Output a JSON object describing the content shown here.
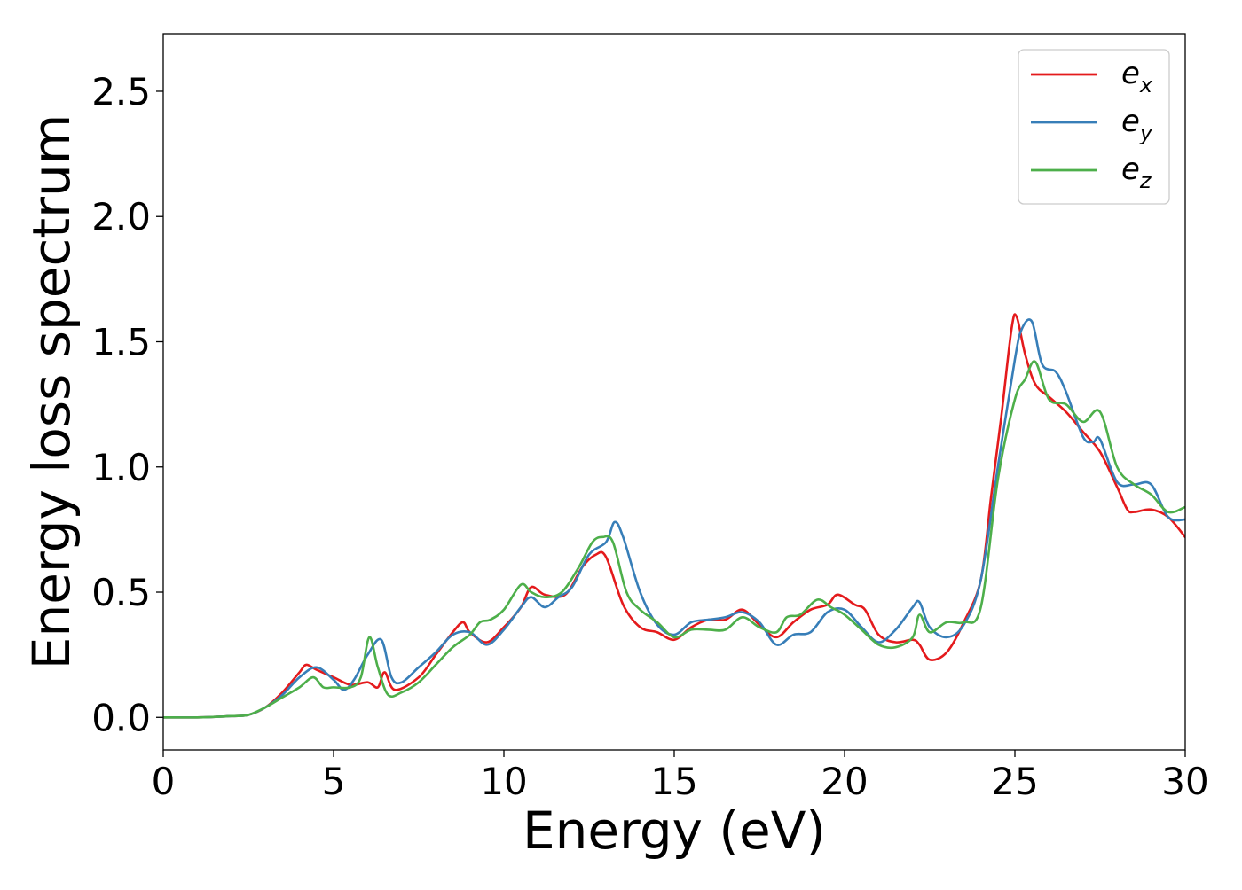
{
  "chart_data": {
    "type": "line",
    "xlabel": "Energy (eV)",
    "ylabel": "Energy loss spectrum",
    "xlim": [
      0,
      30
    ],
    "ylim": [
      -0.13,
      2.73
    ],
    "xticks": [
      0,
      5,
      10,
      15,
      20,
      25,
      30
    ],
    "xtick_labels": [
      "0",
      "5",
      "10",
      "15",
      "20",
      "25",
      "30"
    ],
    "yticks": [
      0.0,
      0.5,
      1.0,
      1.5,
      2.0,
      2.5
    ],
    "ytick_labels": [
      "0.0",
      "0.5",
      "1.0",
      "1.5",
      "2.0",
      "2.5"
    ],
    "grid": false,
    "legend_position": "top-right",
    "series": [
      {
        "name": "e",
        "subscript": "x",
        "color": "#e41a1c",
        "x": [
          0,
          1,
          2,
          2.5,
          3,
          3.5,
          4,
          4.2,
          4.5,
          5,
          5.5,
          6,
          6.3,
          6.5,
          6.8,
          7.5,
          8,
          8.5,
          8.8,
          9,
          9.5,
          10,
          10.5,
          10.8,
          11.2,
          11.8,
          12.3,
          12.7,
          13,
          13.5,
          14,
          14.5,
          15,
          15.5,
          16,
          16.5,
          17,
          17.5,
          18,
          18.5,
          19,
          19.5,
          19.8,
          20.3,
          20.6,
          21,
          21.5,
          22,
          22.2,
          22.5,
          23,
          23.5,
          24,
          24.3,
          24.6,
          24.9,
          25.05,
          25.3,
          25.6,
          26,
          26.5,
          27,
          27.5,
          28,
          28.3,
          28.5,
          29,
          29.5,
          30
        ],
        "y": [
          0,
          0,
          0.005,
          0.01,
          0.04,
          0.1,
          0.18,
          0.21,
          0.19,
          0.16,
          0.13,
          0.14,
          0.12,
          0.18,
          0.11,
          0.16,
          0.25,
          0.34,
          0.38,
          0.34,
          0.3,
          0.36,
          0.44,
          0.52,
          0.49,
          0.49,
          0.6,
          0.65,
          0.64,
          0.45,
          0.36,
          0.34,
          0.31,
          0.36,
          0.39,
          0.39,
          0.43,
          0.37,
          0.32,
          0.38,
          0.43,
          0.45,
          0.49,
          0.45,
          0.43,
          0.33,
          0.3,
          0.31,
          0.29,
          0.23,
          0.26,
          0.38,
          0.55,
          0.88,
          1.2,
          1.55,
          1.6,
          1.45,
          1.33,
          1.28,
          1.22,
          1.14,
          1.06,
          0.92,
          0.83,
          0.82,
          0.83,
          0.8,
          0.72
        ]
      },
      {
        "name": "e",
        "subscript": "y",
        "color": "#377eb8",
        "x": [
          0,
          1,
          2,
          2.5,
          3,
          3.5,
          4,
          4.5,
          5,
          5.3,
          5.6,
          6,
          6.4,
          6.7,
          7,
          7.5,
          8,
          8.5,
          9,
          9.5,
          10,
          10.5,
          10.8,
          11.2,
          11.6,
          12,
          12.5,
          13,
          13.25,
          13.5,
          14,
          14.5,
          15,
          15.5,
          16,
          16.5,
          17,
          17.5,
          18,
          18.5,
          19,
          19.5,
          20,
          20.5,
          21,
          21.5,
          22,
          22.2,
          22.5,
          23,
          23.5,
          24,
          24.5,
          25,
          25.2,
          25.5,
          25.8,
          26.2,
          26.5,
          27,
          27.3,
          27.5,
          28,
          28.5,
          29,
          29.5,
          30
        ],
        "y": [
          0,
          0,
          0.005,
          0.01,
          0.04,
          0.09,
          0.16,
          0.2,
          0.15,
          0.11,
          0.15,
          0.25,
          0.31,
          0.16,
          0.14,
          0.2,
          0.26,
          0.33,
          0.34,
          0.29,
          0.35,
          0.44,
          0.48,
          0.44,
          0.48,
          0.52,
          0.65,
          0.7,
          0.78,
          0.72,
          0.5,
          0.37,
          0.33,
          0.38,
          0.39,
          0.4,
          0.42,
          0.38,
          0.29,
          0.33,
          0.34,
          0.42,
          0.43,
          0.36,
          0.3,
          0.35,
          0.44,
          0.46,
          0.36,
          0.32,
          0.37,
          0.55,
          1.0,
          1.43,
          1.55,
          1.58,
          1.41,
          1.38,
          1.3,
          1.12,
          1.1,
          1.11,
          0.94,
          0.93,
          0.93,
          0.8,
          0.79
        ]
      },
      {
        "name": "e",
        "subscript": "z",
        "color": "#4daf4a",
        "x": [
          0,
          1,
          2,
          2.5,
          3,
          3.5,
          4,
          4.4,
          4.7,
          5,
          5.5,
          5.8,
          6.05,
          6.3,
          6.6,
          7,
          7.5,
          8,
          8.5,
          9,
          9.3,
          9.6,
          10,
          10.5,
          10.8,
          11.2,
          11.7,
          12.2,
          12.6,
          12.9,
          13.2,
          13.6,
          14,
          14.5,
          15,
          15.5,
          16,
          16.5,
          17,
          17.5,
          18,
          18.3,
          18.7,
          19.2,
          19.6,
          20,
          20.5,
          21,
          21.5,
          22,
          22.2,
          22.5,
          23,
          23.5,
          24,
          24.5,
          25,
          25.3,
          25.6,
          26,
          26.5,
          27,
          27.5,
          28,
          28.5,
          29,
          29.5,
          30
        ],
        "y": [
          0,
          0,
          0.005,
          0.01,
          0.04,
          0.08,
          0.12,
          0.16,
          0.12,
          0.12,
          0.12,
          0.16,
          0.32,
          0.2,
          0.09,
          0.1,
          0.14,
          0.21,
          0.28,
          0.33,
          0.38,
          0.39,
          0.43,
          0.53,
          0.5,
          0.48,
          0.5,
          0.6,
          0.7,
          0.72,
          0.7,
          0.5,
          0.43,
          0.38,
          0.32,
          0.35,
          0.35,
          0.35,
          0.4,
          0.36,
          0.34,
          0.4,
          0.41,
          0.47,
          0.44,
          0.41,
          0.35,
          0.29,
          0.28,
          0.32,
          0.41,
          0.34,
          0.38,
          0.38,
          0.44,
          0.95,
          1.27,
          1.35,
          1.42,
          1.27,
          1.25,
          1.18,
          1.22,
          1.0,
          0.93,
          0.89,
          0.82,
          0.84
        ]
      }
    ]
  }
}
